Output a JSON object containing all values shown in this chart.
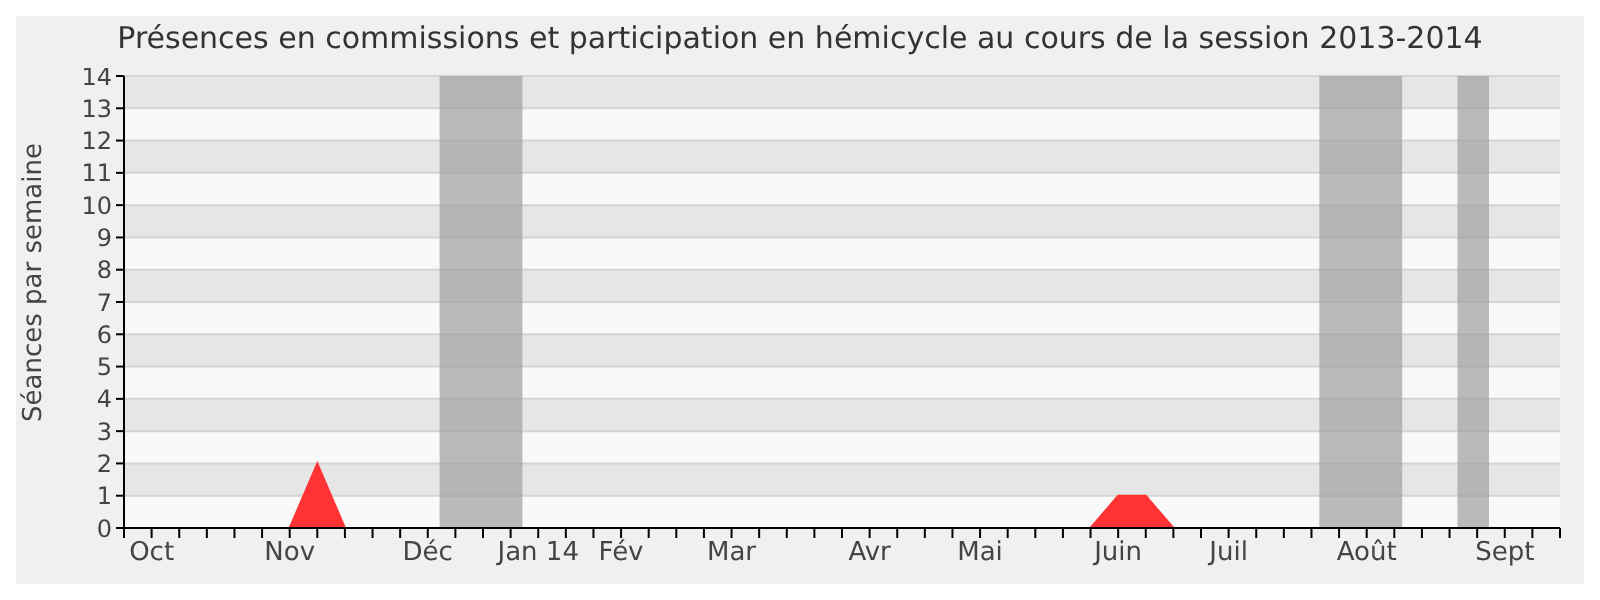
{
  "chart_data": {
    "type": "area",
    "title": "Présences en commissions et participation en hémicycle au cours de la session 2013-2014",
    "ylabel": "Séances par semaine",
    "x": [
      "2013-09-30",
      "2013-10-07",
      "2013-10-14",
      "2013-10-21",
      "2013-10-28",
      "2013-11-04",
      "2013-11-11",
      "2013-11-18",
      "2013-11-25",
      "2013-12-02",
      "2013-12-09",
      "2013-12-16",
      "2013-12-23",
      "2013-12-30",
      "2014-01-06",
      "2014-01-13",
      "2014-01-20",
      "2014-01-27",
      "2014-02-03",
      "2014-02-10",
      "2014-02-17",
      "2014-02-24",
      "2014-03-03",
      "2014-03-10",
      "2014-03-17",
      "2014-03-24",
      "2014-03-31",
      "2014-04-07",
      "2014-04-14",
      "2014-04-21",
      "2014-04-28",
      "2014-05-05",
      "2014-05-12",
      "2014-05-19",
      "2014-05-26",
      "2014-06-02",
      "2014-06-09",
      "2014-06-16",
      "2014-06-23",
      "2014-06-30",
      "2014-07-07",
      "2014-07-14",
      "2014-07-21",
      "2014-07-28",
      "2014-08-04",
      "2014-08-11",
      "2014-08-18",
      "2014-08-25",
      "2014-09-01",
      "2014-09-08",
      "2014-09-15",
      "2014-09-22",
      "2014-09-29"
    ],
    "series": [
      {
        "color": "#ff3333",
        "values": [
          0,
          0,
          0,
          0,
          0,
          0,
          0,
          2,
          0,
          0,
          0,
          0,
          0,
          0,
          0,
          0,
          0,
          0,
          0,
          0,
          0,
          0,
          0,
          0,
          0,
          0,
          0,
          0,
          0,
          0,
          0,
          0,
          0,
          0,
          0,
          0,
          1,
          1,
          0,
          0,
          0,
          0,
          0,
          0,
          0,
          0,
          0,
          0,
          0,
          0,
          0,
          0,
          0
        ]
      }
    ],
    "xlim": [
      "2013-09-30",
      "2014-09-29"
    ],
    "xticks": [
      {
        "value": "2013-09-30",
        "label": null
      },
      {
        "value": "2013-10-07",
        "label": "Oct"
      },
      {
        "value": "2013-10-14",
        "label": null
      },
      {
        "value": "2013-10-21",
        "label": null
      },
      {
        "value": "2013-10-28",
        "label": null
      },
      {
        "value": "2013-11-04",
        "label": null
      },
      {
        "value": "2013-11-11",
        "label": "Nov"
      },
      {
        "value": "2013-11-18",
        "label": null
      },
      {
        "value": "2013-11-25",
        "label": null
      },
      {
        "value": "2013-12-02",
        "label": null
      },
      {
        "value": "2013-12-09",
        "label": null
      },
      {
        "value": "2013-12-16",
        "label": "Déc"
      },
      {
        "value": "2013-12-23",
        "label": null
      },
      {
        "value": "2013-12-30",
        "label": null
      },
      {
        "value": "2014-01-06",
        "label": null
      },
      {
        "value": "2014-01-13",
        "label": "Jan 14"
      },
      {
        "value": "2014-01-20",
        "label": null
      },
      {
        "value": "2014-01-27",
        "label": null
      },
      {
        "value": "2014-02-03",
        "label": "Fév"
      },
      {
        "value": "2014-02-10",
        "label": null
      },
      {
        "value": "2014-02-17",
        "label": null
      },
      {
        "value": "2014-02-24",
        "label": null
      },
      {
        "value": "2014-03-03",
        "label": "Mar"
      },
      {
        "value": "2014-03-10",
        "label": null
      },
      {
        "value": "2014-03-17",
        "label": null
      },
      {
        "value": "2014-03-24",
        "label": null
      },
      {
        "value": "2014-03-31",
        "label": null
      },
      {
        "value": "2014-04-07",
        "label": "Avr"
      },
      {
        "value": "2014-04-14",
        "label": null
      },
      {
        "value": "2014-04-21",
        "label": null
      },
      {
        "value": "2014-04-28",
        "label": null
      },
      {
        "value": "2014-05-05",
        "label": "Mai"
      },
      {
        "value": "2014-05-12",
        "label": null
      },
      {
        "value": "2014-05-19",
        "label": null
      },
      {
        "value": "2014-05-26",
        "label": null
      },
      {
        "value": "2014-06-02",
        "label": null
      },
      {
        "value": "2014-06-09",
        "label": "Juin"
      },
      {
        "value": "2014-06-16",
        "label": null
      },
      {
        "value": "2014-06-23",
        "label": null
      },
      {
        "value": "2014-06-30",
        "label": null
      },
      {
        "value": "2014-07-07",
        "label": "Juil"
      },
      {
        "value": "2014-07-14",
        "label": null
      },
      {
        "value": "2014-07-21",
        "label": null
      },
      {
        "value": "2014-07-28",
        "label": null
      },
      {
        "value": "2014-08-04",
        "label": null
      },
      {
        "value": "2014-08-11",
        "label": "Août"
      },
      {
        "value": "2014-08-18",
        "label": null
      },
      {
        "value": "2014-08-25",
        "label": null
      },
      {
        "value": "2014-09-01",
        "label": null
      },
      {
        "value": "2014-09-08",
        "label": null
      },
      {
        "value": "2014-09-15",
        "label": "Sept"
      },
      {
        "value": "2014-09-22",
        "label": null
      },
      {
        "value": "2014-09-29",
        "label": null
      }
    ],
    "ylim": [
      0,
      14
    ],
    "yticks": [
      0,
      1,
      2,
      3,
      4,
      5,
      6,
      7,
      8,
      9,
      10,
      11,
      12,
      13,
      14
    ],
    "bands": [
      {
        "axis": "x",
        "from": "2013-12-19",
        "to": "2014-01-09",
        "color": "#a0a0a0"
      },
      {
        "axis": "x",
        "from": "2014-07-30",
        "to": "2014-08-20",
        "color": "#a0a0a0"
      },
      {
        "axis": "x",
        "from": "2014-09-03",
        "to": "2014-09-11",
        "color": "#a0a0a0"
      }
    ],
    "grid": "y",
    "legend": false
  }
}
